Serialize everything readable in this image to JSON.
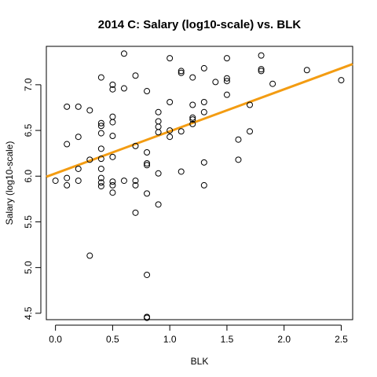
{
  "chart_data": {
    "type": "scatter",
    "title": "2014 C: Salary (log10-scale) vs. BLK",
    "xlabel": "BLK",
    "ylabel": "Salary (log10-scale)",
    "xlim": [
      -0.08,
      2.6
    ],
    "ylim": [
      4.43,
      7.42
    ],
    "x_ticks": [
      0.0,
      0.5,
      1.0,
      1.5,
      2.0,
      2.5
    ],
    "x_tick_labels": [
      "0.0",
      "0.5",
      "1.0",
      "1.5",
      "2.0",
      "2.5"
    ],
    "y_ticks": [
      4.5,
      5.0,
      5.5,
      6.0,
      6.5,
      7.0
    ],
    "y_tick_labels": [
      "4.5",
      "5.0",
      "5.5",
      "6.0",
      "6.5",
      "7.0"
    ],
    "grid": false,
    "legend": "none",
    "point_color": "#000000",
    "fit_line": {
      "intercept": 6.03,
      "slope": 0.46,
      "color": "#f39c12"
    },
    "points": [
      {
        "x": 0.0,
        "y": 5.95
      },
      {
        "x": 0.1,
        "y": 6.76
      },
      {
        "x": 0.1,
        "y": 6.35
      },
      {
        "x": 0.1,
        "y": 5.98
      },
      {
        "x": 0.1,
        "y": 5.9
      },
      {
        "x": 0.2,
        "y": 6.76
      },
      {
        "x": 0.2,
        "y": 6.43
      },
      {
        "x": 0.2,
        "y": 6.08
      },
      {
        "x": 0.2,
        "y": 5.95
      },
      {
        "x": 0.3,
        "y": 6.72
      },
      {
        "x": 0.3,
        "y": 6.18
      },
      {
        "x": 0.3,
        "y": 5.13
      },
      {
        "x": 0.4,
        "y": 7.08
      },
      {
        "x": 0.4,
        "y": 6.58
      },
      {
        "x": 0.4,
        "y": 6.55
      },
      {
        "x": 0.4,
        "y": 6.47
      },
      {
        "x": 0.4,
        "y": 6.3
      },
      {
        "x": 0.4,
        "y": 6.19
      },
      {
        "x": 0.4,
        "y": 6.08
      },
      {
        "x": 0.4,
        "y": 5.98
      },
      {
        "x": 0.4,
        "y": 5.93
      },
      {
        "x": 0.4,
        "y": 5.89
      },
      {
        "x": 0.5,
        "y": 7.0
      },
      {
        "x": 0.5,
        "y": 6.95
      },
      {
        "x": 0.5,
        "y": 6.65
      },
      {
        "x": 0.5,
        "y": 6.59
      },
      {
        "x": 0.5,
        "y": 6.44
      },
      {
        "x": 0.5,
        "y": 6.21
      },
      {
        "x": 0.5,
        "y": 5.94
      },
      {
        "x": 0.5,
        "y": 5.9
      },
      {
        "x": 0.5,
        "y": 5.82
      },
      {
        "x": 0.6,
        "y": 7.34
      },
      {
        "x": 0.6,
        "y": 6.96
      },
      {
        "x": 0.6,
        "y": 5.95
      },
      {
        "x": 0.7,
        "y": 7.1
      },
      {
        "x": 0.7,
        "y": 6.33
      },
      {
        "x": 0.7,
        "y": 5.95
      },
      {
        "x": 0.7,
        "y": 5.9
      },
      {
        "x": 0.7,
        "y": 5.6
      },
      {
        "x": 0.8,
        "y": 6.93
      },
      {
        "x": 0.8,
        "y": 6.26
      },
      {
        "x": 0.8,
        "y": 6.14
      },
      {
        "x": 0.8,
        "y": 6.12
      },
      {
        "x": 0.8,
        "y": 5.81
      },
      {
        "x": 0.8,
        "y": 4.92
      },
      {
        "x": 0.8,
        "y": 4.46
      },
      {
        "x": 0.8,
        "y": 4.45
      },
      {
        "x": 0.9,
        "y": 6.7
      },
      {
        "x": 0.9,
        "y": 6.6
      },
      {
        "x": 0.9,
        "y": 6.54
      },
      {
        "x": 0.9,
        "y": 6.48
      },
      {
        "x": 0.9,
        "y": 6.03
      },
      {
        "x": 0.9,
        "y": 5.69
      },
      {
        "x": 1.0,
        "y": 7.29
      },
      {
        "x": 1.0,
        "y": 6.81
      },
      {
        "x": 1.0,
        "y": 6.5
      },
      {
        "x": 1.0,
        "y": 6.43
      },
      {
        "x": 1.1,
        "y": 7.15
      },
      {
        "x": 1.1,
        "y": 7.13
      },
      {
        "x": 1.1,
        "y": 6.49
      },
      {
        "x": 1.1,
        "y": 6.05
      },
      {
        "x": 1.2,
        "y": 7.08
      },
      {
        "x": 1.2,
        "y": 6.78
      },
      {
        "x": 1.2,
        "y": 6.64
      },
      {
        "x": 1.2,
        "y": 6.62
      },
      {
        "x": 1.2,
        "y": 6.57
      },
      {
        "x": 1.3,
        "y": 7.18
      },
      {
        "x": 1.3,
        "y": 6.81
      },
      {
        "x": 1.3,
        "y": 6.7
      },
      {
        "x": 1.3,
        "y": 6.15
      },
      {
        "x": 1.3,
        "y": 5.9
      },
      {
        "x": 1.4,
        "y": 7.03
      },
      {
        "x": 1.5,
        "y": 7.29
      },
      {
        "x": 1.5,
        "y": 7.07
      },
      {
        "x": 1.5,
        "y": 7.04
      },
      {
        "x": 1.5,
        "y": 6.89
      },
      {
        "x": 1.6,
        "y": 6.4
      },
      {
        "x": 1.6,
        "y": 6.18
      },
      {
        "x": 1.7,
        "y": 6.78
      },
      {
        "x": 1.7,
        "y": 6.49
      },
      {
        "x": 1.8,
        "y": 7.32
      },
      {
        "x": 1.8,
        "y": 7.17
      },
      {
        "x": 1.8,
        "y": 7.15
      },
      {
        "x": 1.9,
        "y": 7.01
      },
      {
        "x": 2.2,
        "y": 7.16
      },
      {
        "x": 2.5,
        "y": 7.05
      }
    ]
  }
}
